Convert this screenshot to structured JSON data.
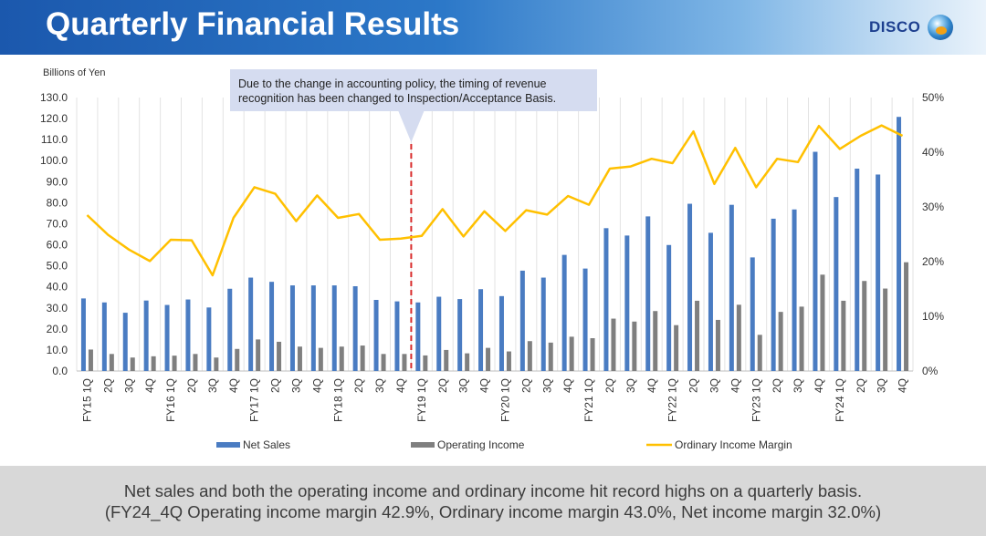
{
  "header": {
    "title": "Quarterly Financial Results",
    "brand": "DISCO"
  },
  "colors": {
    "net_sales": "#4a7cc2",
    "operating_income": "#7f7f7f",
    "margin": "#ffc000",
    "header": "#1f5fb4",
    "callout": "#d5dcf0",
    "dashed": "#d92c2c"
  },
  "chart_data": {
    "type": "bar",
    "unit_label": "Billions of Yen",
    "categories": [
      "FY15 1Q",
      "2Q",
      "3Q",
      "4Q",
      "FY16 1Q",
      "2Q",
      "3Q",
      "4Q",
      "FY17 1Q",
      "2Q",
      "3Q",
      "4Q",
      "FY18 1Q",
      "2Q",
      "3Q",
      "4Q",
      "FY19 1Q",
      "2Q",
      "3Q",
      "4Q",
      "FY20 1Q",
      "2Q",
      "3Q",
      "4Q",
      "FY21 1Q",
      "2Q",
      "3Q",
      "4Q",
      "FY22 1Q",
      "2Q",
      "3Q",
      "4Q",
      "FY23 1Q",
      "2Q",
      "3Q",
      "4Q",
      "FY24 1Q",
      "2Q",
      "3Q",
      "4Q"
    ],
    "y_left": {
      "min": 0,
      "max": 130,
      "ticks": [
        "0.0",
        "10.0",
        "20.0",
        "30.0",
        "40.0",
        "50.0",
        "60.0",
        "70.0",
        "80.0",
        "90.0",
        "100.0",
        "110.0",
        "120.0",
        "130.0"
      ]
    },
    "y_right": {
      "min": 0,
      "max": 50,
      "ticks": [
        "0%",
        "10%",
        "20%",
        "30%",
        "40%",
        "50%"
      ]
    },
    "series": [
      {
        "name": "Net Sales",
        "type": "bar",
        "axis": "left",
        "values": [
          34.5,
          32.6,
          27.7,
          33.5,
          31.4,
          34.0,
          30.2,
          39.1,
          44.4,
          42.4,
          40.7,
          40.7,
          40.7,
          40.3,
          33.8,
          33.1,
          32.6,
          35.3,
          34.2,
          38.9,
          35.6,
          47.7,
          44.4,
          55.2,
          48.7,
          67.9,
          64.4,
          73.5,
          59.9,
          79.5,
          65.7,
          79.0,
          54.0,
          72.4,
          76.8,
          104.2,
          82.7,
          96.2,
          93.4,
          120.8
        ]
      },
      {
        "name": "Operating Income",
        "type": "bar",
        "axis": "left",
        "values": [
          10.2,
          8.1,
          6.4,
          7.0,
          7.3,
          8.1,
          6.4,
          10.5,
          15.0,
          13.9,
          11.6,
          11.0,
          11.6,
          12.1,
          8.1,
          8.1,
          7.4,
          10.0,
          8.4,
          11.0,
          9.3,
          14.2,
          13.5,
          16.3,
          15.6,
          24.9,
          23.5,
          28.5,
          21.8,
          33.4,
          24.3,
          31.5,
          17.2,
          28.1,
          30.6,
          45.8,
          33.4,
          42.8,
          39.2,
          51.7
        ]
      },
      {
        "name": "Ordinary Income Margin",
        "type": "line",
        "axis": "right",
        "values": [
          28.5,
          24.9,
          22.2,
          20.1,
          24.0,
          23.9,
          17.5,
          28.0,
          33.6,
          32.4,
          27.4,
          32.1,
          28.0,
          28.7,
          24.0,
          24.2,
          24.7,
          29.6,
          24.6,
          29.2,
          25.6,
          29.4,
          28.6,
          32.0,
          30.4,
          37.0,
          37.4,
          38.8,
          38.0,
          43.8,
          34.2,
          40.8,
          33.6,
          38.8,
          38.2,
          44.8,
          40.6,
          43.0,
          44.9,
          43.0
        ]
      }
    ],
    "legend": {
      "position": "bottom"
    },
    "annotation": {
      "line1": "Due to the change in accounting policy, the timing of revenue",
      "line2": "recognition has been changed to Inspection/Acceptance Basis.",
      "after_category": "FY18 4Q"
    }
  },
  "footer": {
    "line1": "Net sales and both the operating income and ordinary income hit record highs on a quarterly basis.",
    "line2": "(FY24_4Q Operating income margin 42.9%, Ordinary income margin 43.0%, Net income margin 32.0%)"
  }
}
